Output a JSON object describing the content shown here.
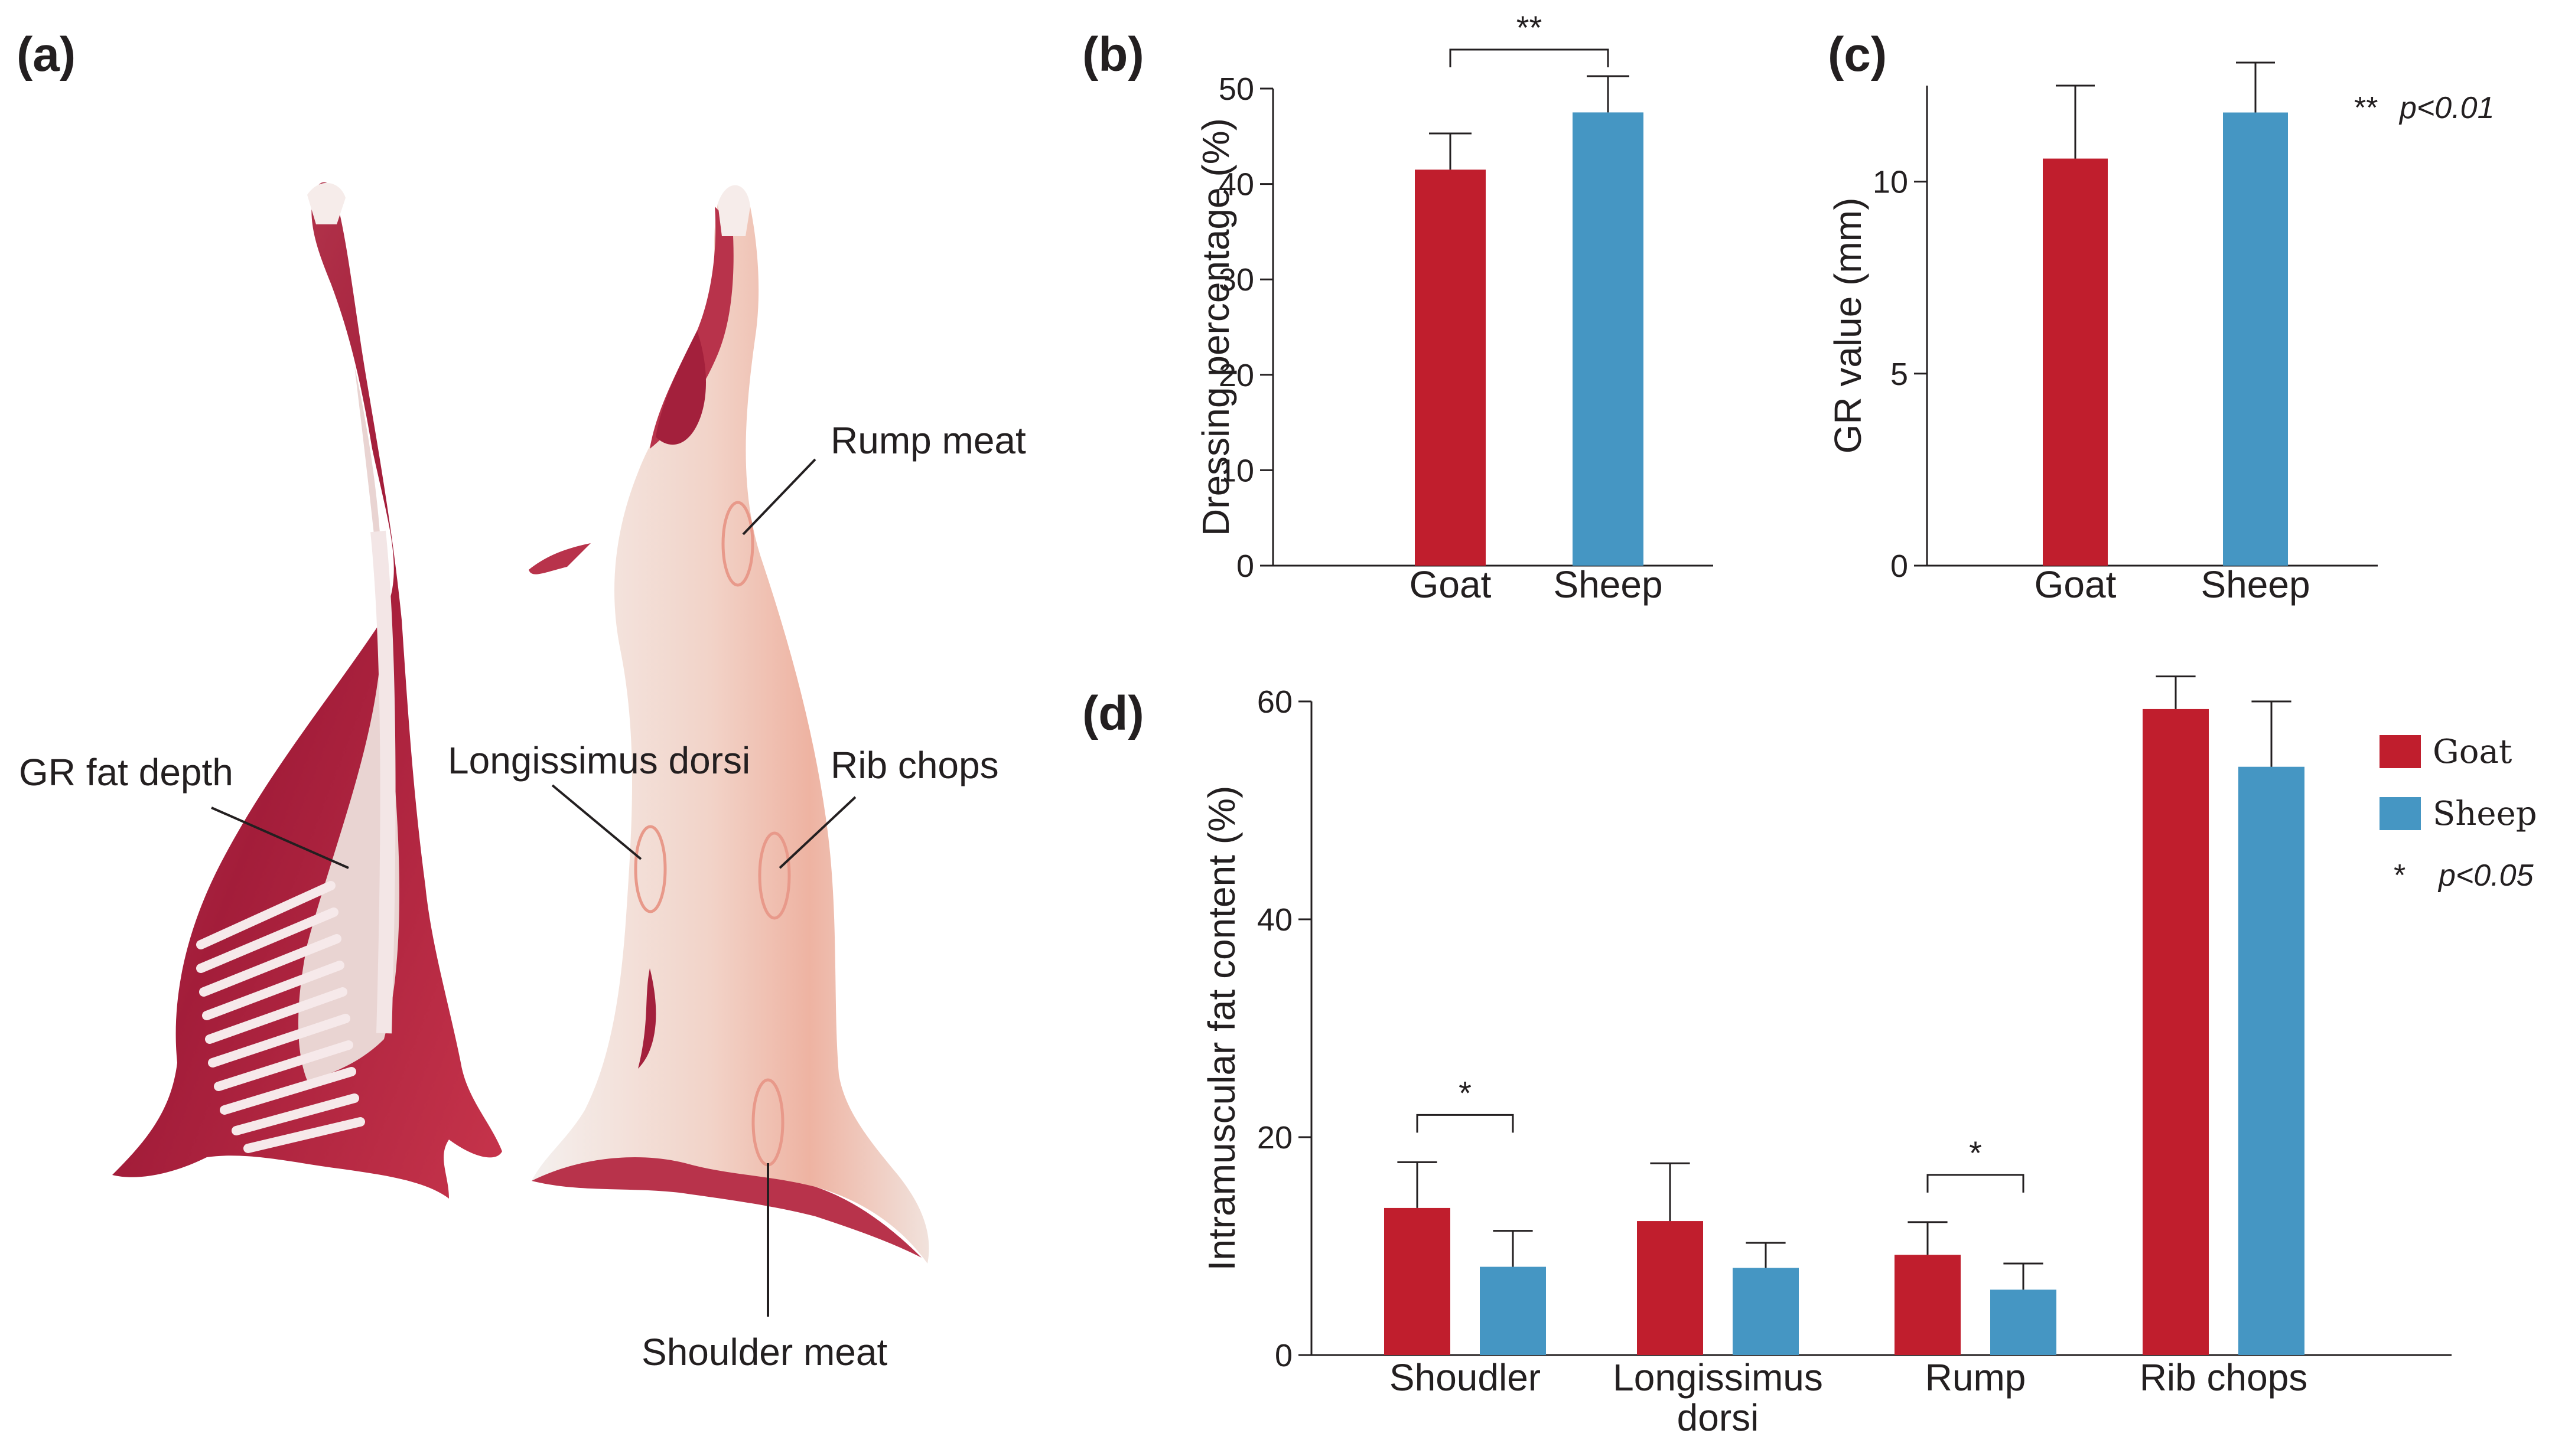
{
  "colors": {
    "goat": "#c01e2d",
    "sheep": "#4596c3",
    "ink": "#231f20",
    "callout": "#e8998a"
  },
  "panel_labels": {
    "a": "(a)",
    "b": "(b)",
    "c": "(c)",
    "d": "(d)"
  },
  "photo_annotations": {
    "rump_meat": "Rump meat",
    "gr_fat_depth": "GR fat depth",
    "longissimus_dorsi": "Longissimus dorsi",
    "rib_chops": "Rib chops",
    "shoulder_meat": "Shoulder meat"
  },
  "legend": {
    "goat": "Goat",
    "sheep": "Sheep",
    "p001_marker": "**",
    "p001_text": "p<0.01",
    "p005_marker": "*",
    "p005_text": "p<0.05"
  },
  "chart_data": [
    {
      "id": "b",
      "type": "bar",
      "ylabel": "Dressing percentage (%)",
      "ylim": [
        0,
        50
      ],
      "yticks": [
        0,
        10,
        20,
        30,
        40,
        50
      ],
      "categories": [
        "Goat",
        "Sheep"
      ],
      "values": [
        41.5,
        47.5
      ],
      "errors": [
        3.8,
        3.8
      ],
      "significance": [
        {
          "between": [
            "Goat",
            "Sheep"
          ],
          "mark": "**"
        }
      ]
    },
    {
      "id": "c",
      "type": "bar",
      "ylabel": "GR value (mm)",
      "ylim": [
        0,
        12.5
      ],
      "yticks": [
        0,
        5,
        10
      ],
      "categories": [
        "Goat",
        "Sheep"
      ],
      "values": [
        10.6,
        11.8
      ],
      "errors": [
        1.9,
        1.3
      ],
      "significance": []
    },
    {
      "id": "d",
      "type": "bar",
      "ylabel": "Intramuscular fat content (%)",
      "ylim": [
        0,
        60
      ],
      "yticks": [
        0,
        20,
        40,
        60
      ],
      "categories": [
        "Shoudler",
        "Longissimus dorsi",
        "Rump",
        "Rib chops"
      ],
      "category_lines": [
        [
          "Shoudler"
        ],
        [
          "Longissimus",
          "dorsi"
        ],
        [
          "Rump"
        ],
        [
          "Rib chops"
        ]
      ],
      "series": [
        {
          "name": "Goat",
          "values": [
            13.5,
            12.3,
            9.2,
            59.3
          ],
          "errors": [
            4.2,
            5.3,
            3.0,
            3.0
          ]
        },
        {
          "name": "Sheep",
          "values": [
            8.1,
            8.0,
            6.0,
            54.0
          ],
          "errors": [
            3.3,
            2.3,
            2.4,
            6.0
          ]
        }
      ],
      "significance": [
        {
          "category": "Shoudler",
          "mark": "*"
        },
        {
          "category": "Rump",
          "mark": "*"
        }
      ]
    }
  ]
}
